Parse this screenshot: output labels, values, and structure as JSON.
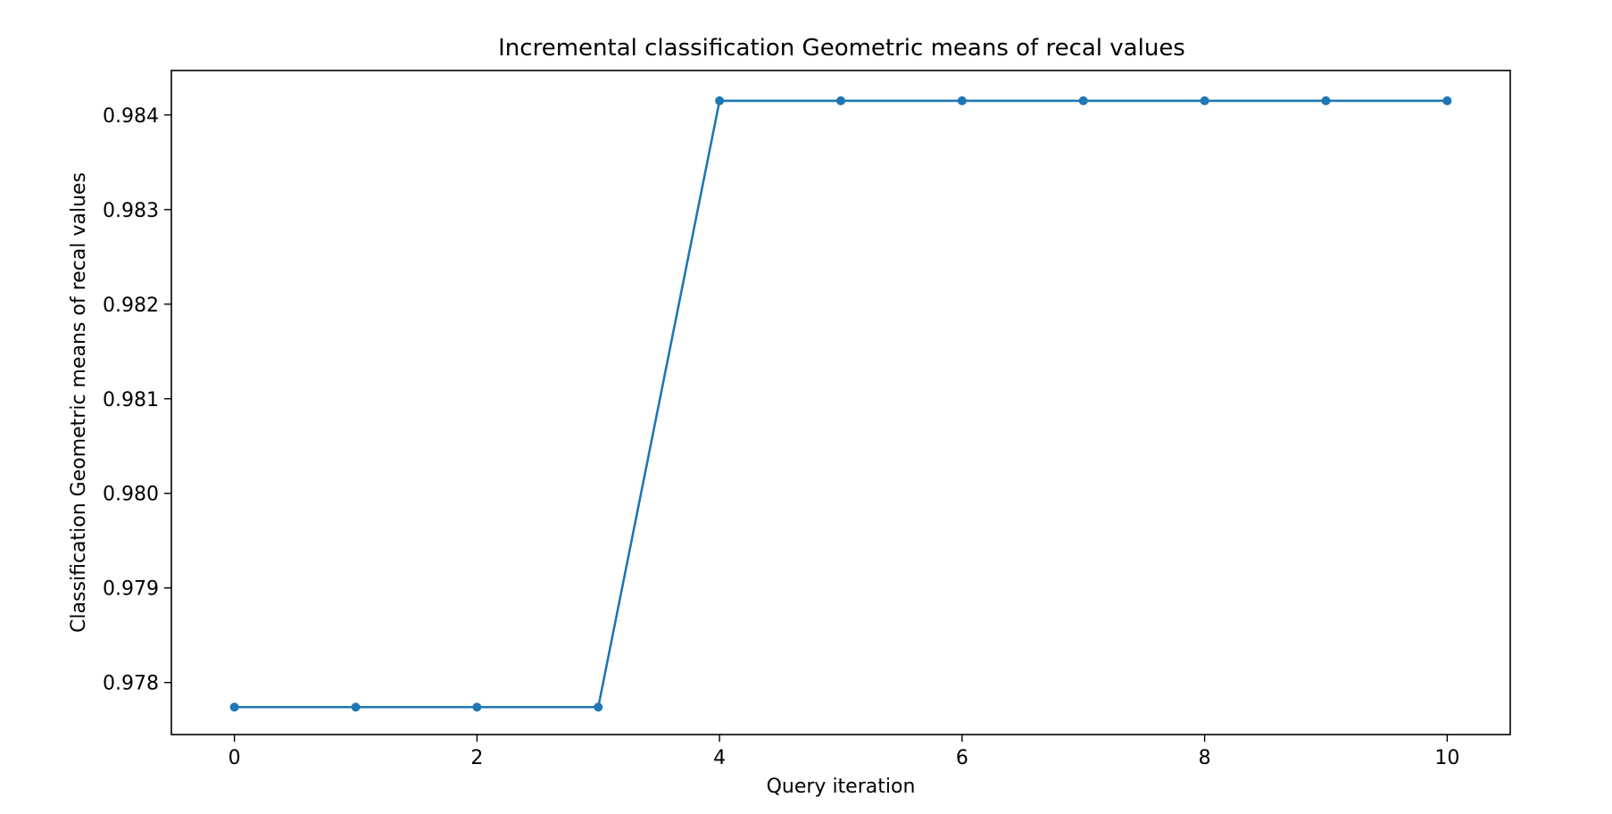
{
  "chart_data": {
    "type": "line",
    "title": "Incremental classification Geometric means of recal values",
    "xlabel": "Query iteration",
    "ylabel": "Classification Geometric means of recal values",
    "x": [
      0,
      1,
      2,
      3,
      4,
      5,
      6,
      7,
      8,
      9,
      10
    ],
    "series": [
      {
        "values": [
          0.97774,
          0.97774,
          0.97774,
          0.97774,
          0.98415,
          0.98415,
          0.98415,
          0.98415,
          0.98415,
          0.98415,
          0.98415
        ],
        "color": "#1f77b4",
        "marker": "circle"
      }
    ],
    "xticks": [
      0,
      2,
      4,
      6,
      8,
      10
    ],
    "xtick_labels": [
      "0",
      "2",
      "4",
      "6",
      "8",
      "10"
    ],
    "yticks": [
      0.978,
      0.979,
      0.98,
      0.981,
      0.982,
      0.983,
      0.984
    ],
    "ytick_labels": [
      "0.978",
      "0.979",
      "0.980",
      "0.981",
      "0.982",
      "0.983",
      "0.984"
    ],
    "xlim": [
      -0.52,
      10.52
    ],
    "ylim": [
      0.97745,
      0.98447
    ],
    "grid": false,
    "legend": false
  }
}
